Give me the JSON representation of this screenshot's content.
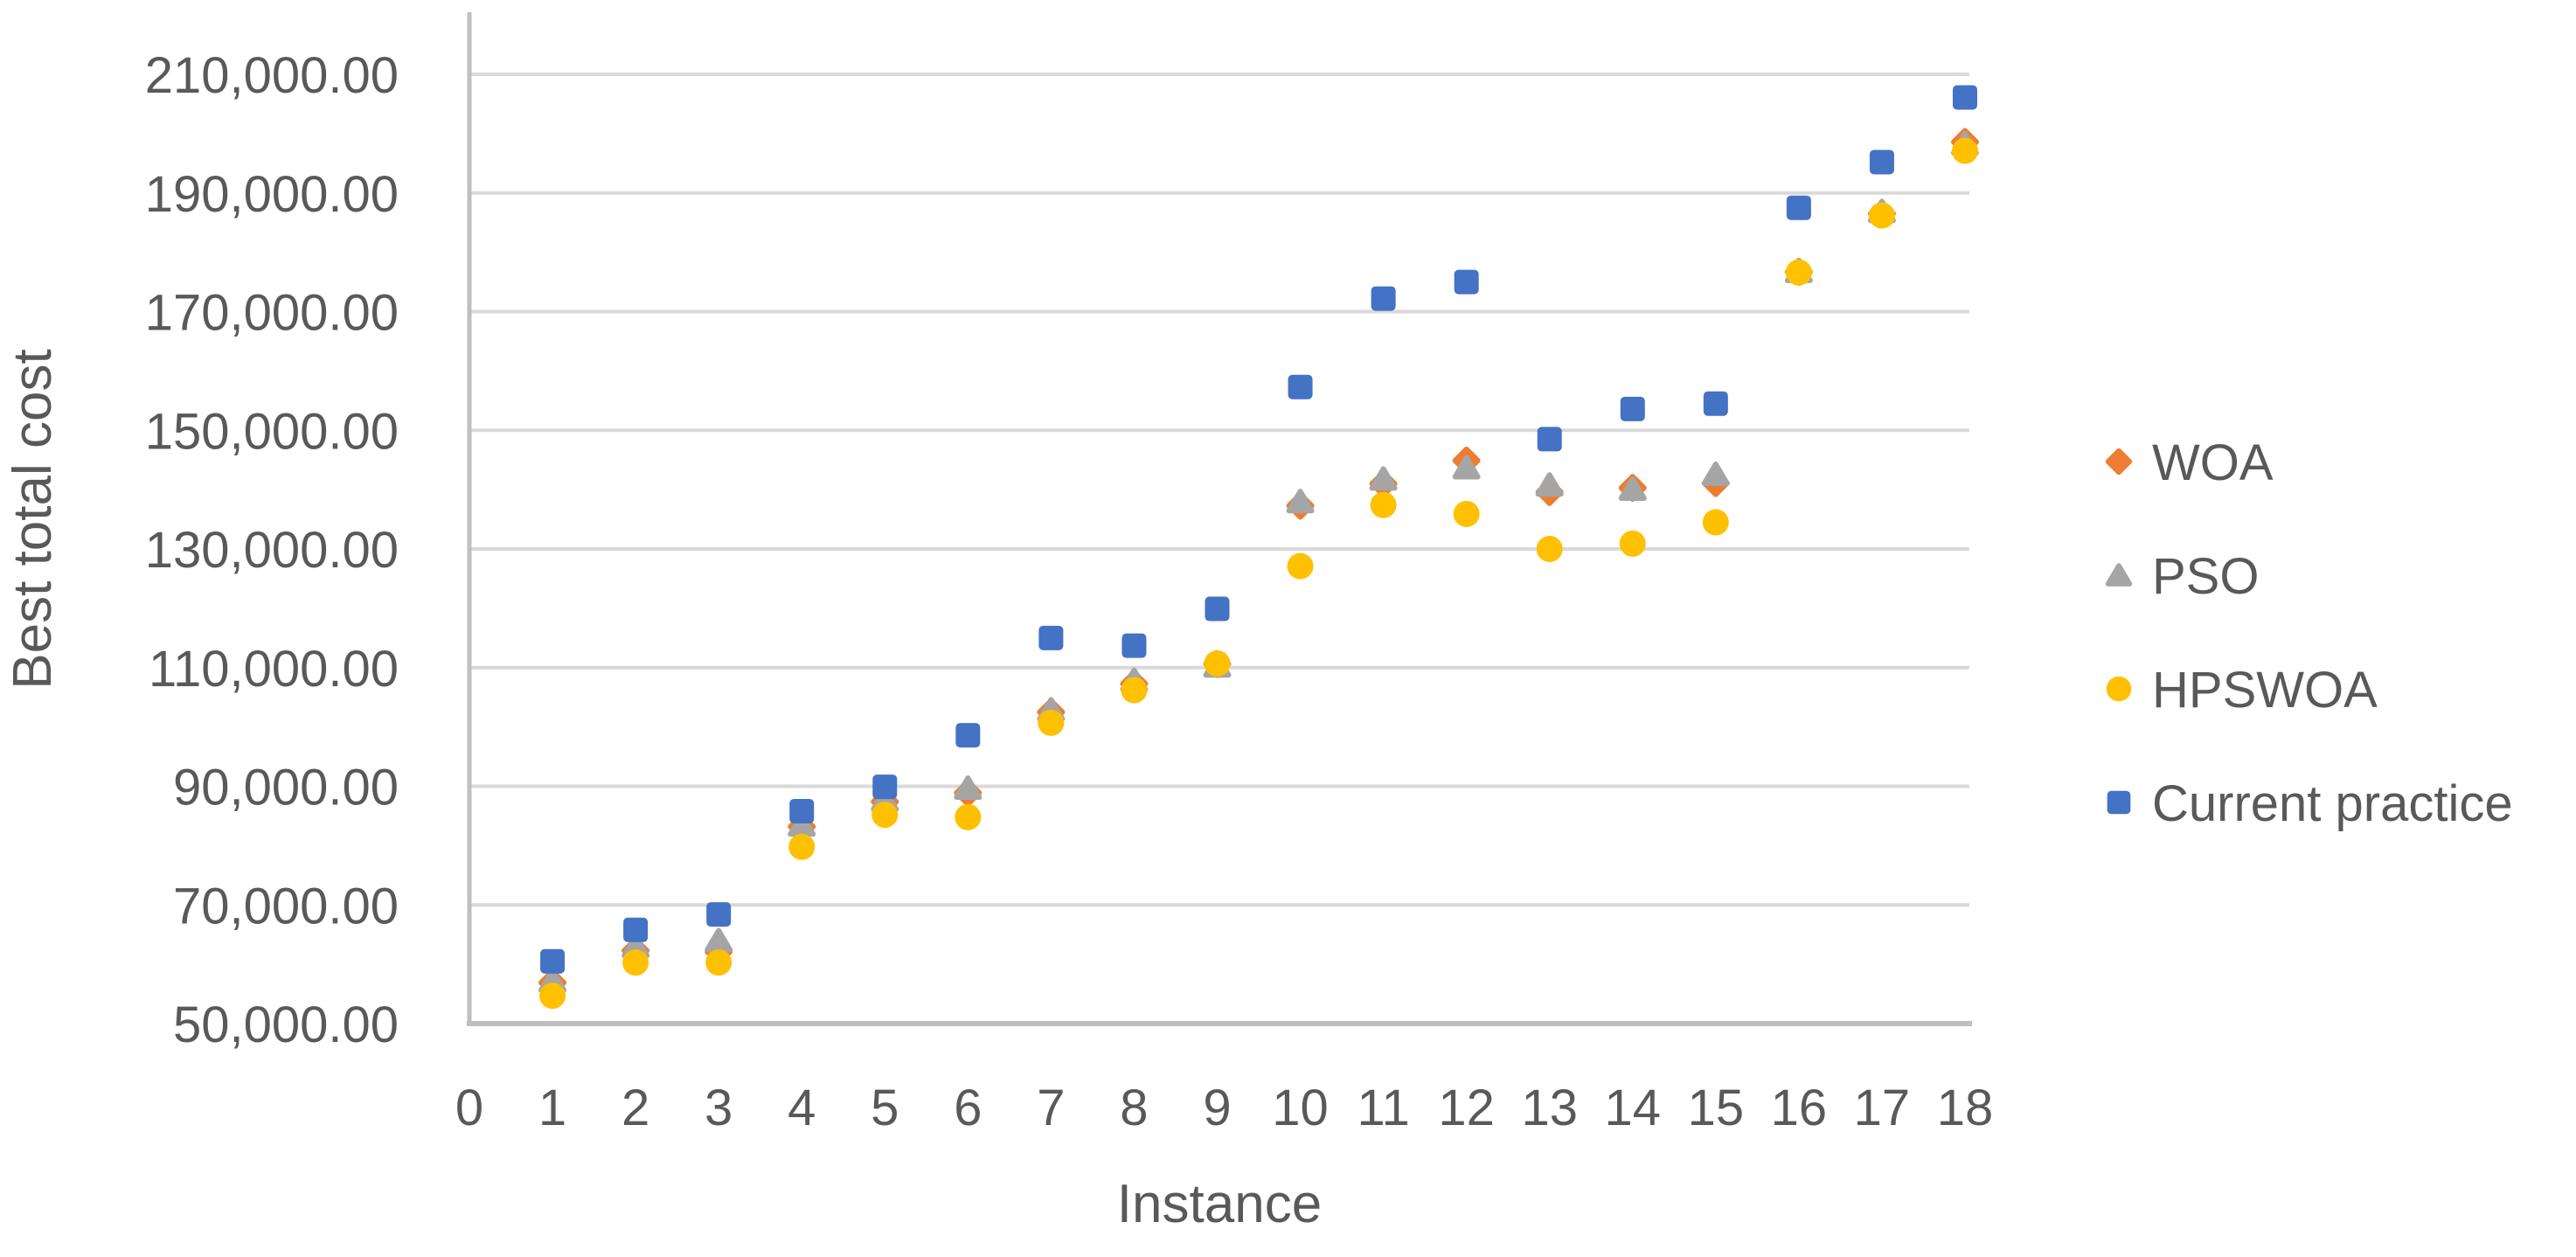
{
  "chart_data": {
    "type": "scatter",
    "title": "",
    "xlabel": "Instance",
    "ylabel": "Best total cost",
    "x_range": [
      0,
      18
    ],
    "y_range": [
      50000,
      220000
    ],
    "grid": "horizontal",
    "legend_position": "right",
    "x": [
      1,
      2,
      3,
      4,
      5,
      6,
      7,
      8,
      9,
      10,
      11,
      12,
      13,
      14,
      15,
      16,
      17,
      18
    ],
    "x_ticks": [
      "0",
      "1",
      "2",
      "3",
      "4",
      "5",
      "6",
      "7",
      "8",
      "9",
      "10",
      "11",
      "12",
      "13",
      "14",
      "15",
      "16",
      "17",
      "18"
    ],
    "y_ticks": [
      {
        "value": 50000,
        "label": "50,000.00"
      },
      {
        "value": 70000,
        "label": "70,000.00"
      },
      {
        "value": 90000,
        "label": "90,000.00"
      },
      {
        "value": 110000,
        "label": "110,000.00"
      },
      {
        "value": 130000,
        "label": "130,000.00"
      },
      {
        "value": 150000,
        "label": "150,000.00"
      },
      {
        "value": 170000,
        "label": "170,000.00"
      },
      {
        "value": 190000,
        "label": "190,000.00"
      },
      {
        "value": 210000,
        "label": "210,000.00"
      }
    ],
    "series": [
      {
        "name": "WOA",
        "marker": "diamond",
        "color": "#ED7D31",
        "values": [
          56900,
          62300,
          62100,
          83200,
          87400,
          88900,
          102500,
          107300,
          110600,
          137300,
          141000,
          144900,
          139600,
          140300,
          141100,
          176700,
          186500,
          198600
        ]
      },
      {
        "name": "PSO",
        "marker": "triangle",
        "color": "#A5A5A5",
        "values": [
          57200,
          63000,
          64000,
          83500,
          87700,
          89700,
          102900,
          107900,
          110300,
          138000,
          141800,
          143700,
          140800,
          140100,
          142600,
          176800,
          186900,
          198300
        ]
      },
      {
        "name": "HPSWOA",
        "marker": "circle",
        "color": "#FFC000",
        "values": [
          54700,
          60300,
          60300,
          79800,
          85200,
          84800,
          100700,
          106200,
          110700,
          127100,
          137400,
          135900,
          130000,
          130900,
          134500,
          176600,
          186200,
          197100
        ]
      },
      {
        "name": "Current practice",
        "marker": "square",
        "color": "#4472C4",
        "values": [
          60500,
          65800,
          68400,
          85800,
          89900,
          98600,
          115000,
          113700,
          119900,
          157300,
          172200,
          175000,
          148500,
          153600,
          154500,
          187500,
          195200,
          206100
        ]
      }
    ]
  },
  "colors": {
    "text": "#595959",
    "gridline": "#D9D9D9",
    "axis_line": "#BFBFBF",
    "background": "#FFFFFF"
  }
}
